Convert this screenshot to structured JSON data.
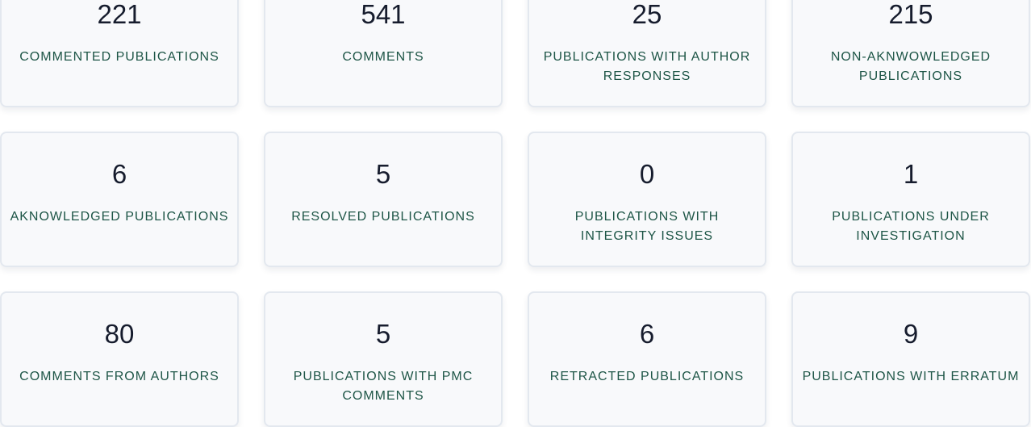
{
  "stats": [
    {
      "value": "221",
      "label": "COMMENTED PUBLICATIONS"
    },
    {
      "value": "541",
      "label": "COMMENTS"
    },
    {
      "value": "25",
      "label": "PUBLICATIONS WITH AUTHOR RESPONSES"
    },
    {
      "value": "215",
      "label": "NON-AKNWOWLEDGED PUBLICATIONS"
    },
    {
      "value": "6",
      "label": "AKNOWLEDGED PUBLICATIONS"
    },
    {
      "value": "5",
      "label": "RESOLVED PUBLICATIONS"
    },
    {
      "value": "0",
      "label": "PUBLICATIONS WITH INTEGRITY ISSUES"
    },
    {
      "value": "1",
      "label": "PUBLICATIONS UNDER INVESTIGATION"
    },
    {
      "value": "80",
      "label": "COMMENTS FROM AUTHORS"
    },
    {
      "value": "5",
      "label": "PUBLICATIONS WITH PMC COMMENTS"
    },
    {
      "value": "6",
      "label": "RETRACTED PUBLICATIONS"
    },
    {
      "value": "9",
      "label": "PUBLICATIONS WITH ERRATUM"
    }
  ]
}
